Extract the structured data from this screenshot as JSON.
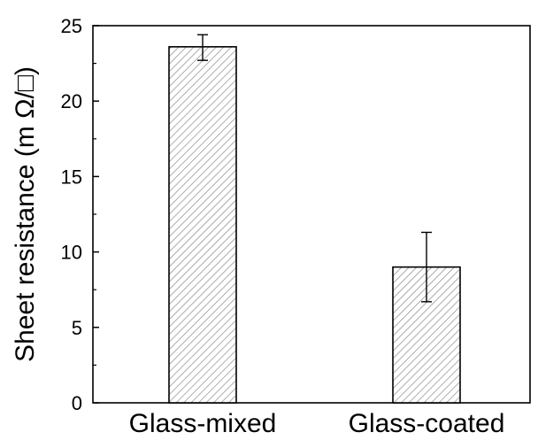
{
  "chart_data": {
    "type": "bar",
    "title": "",
    "xlabel": "",
    "ylabel": "Sheet resistance (m Ω/□)",
    "categories": [
      "Glass-mixed",
      "Glass-coated"
    ],
    "values": [
      23.6,
      9.0
    ],
    "error_low": [
      22.7,
      6.7
    ],
    "error_high": [
      24.4,
      11.3
    ],
    "ylim": [
      0,
      25
    ],
    "yticks": [
      0,
      5,
      10,
      15,
      20,
      25
    ],
    "ytick_labels": [
      "0",
      "5",
      "10",
      "15",
      "20",
      "25"
    ],
    "bar_fill": "hatched",
    "bar_edge_color": "#000000",
    "hatch_color": "#8a8a8a",
    "grid": false,
    "legend": "none"
  }
}
